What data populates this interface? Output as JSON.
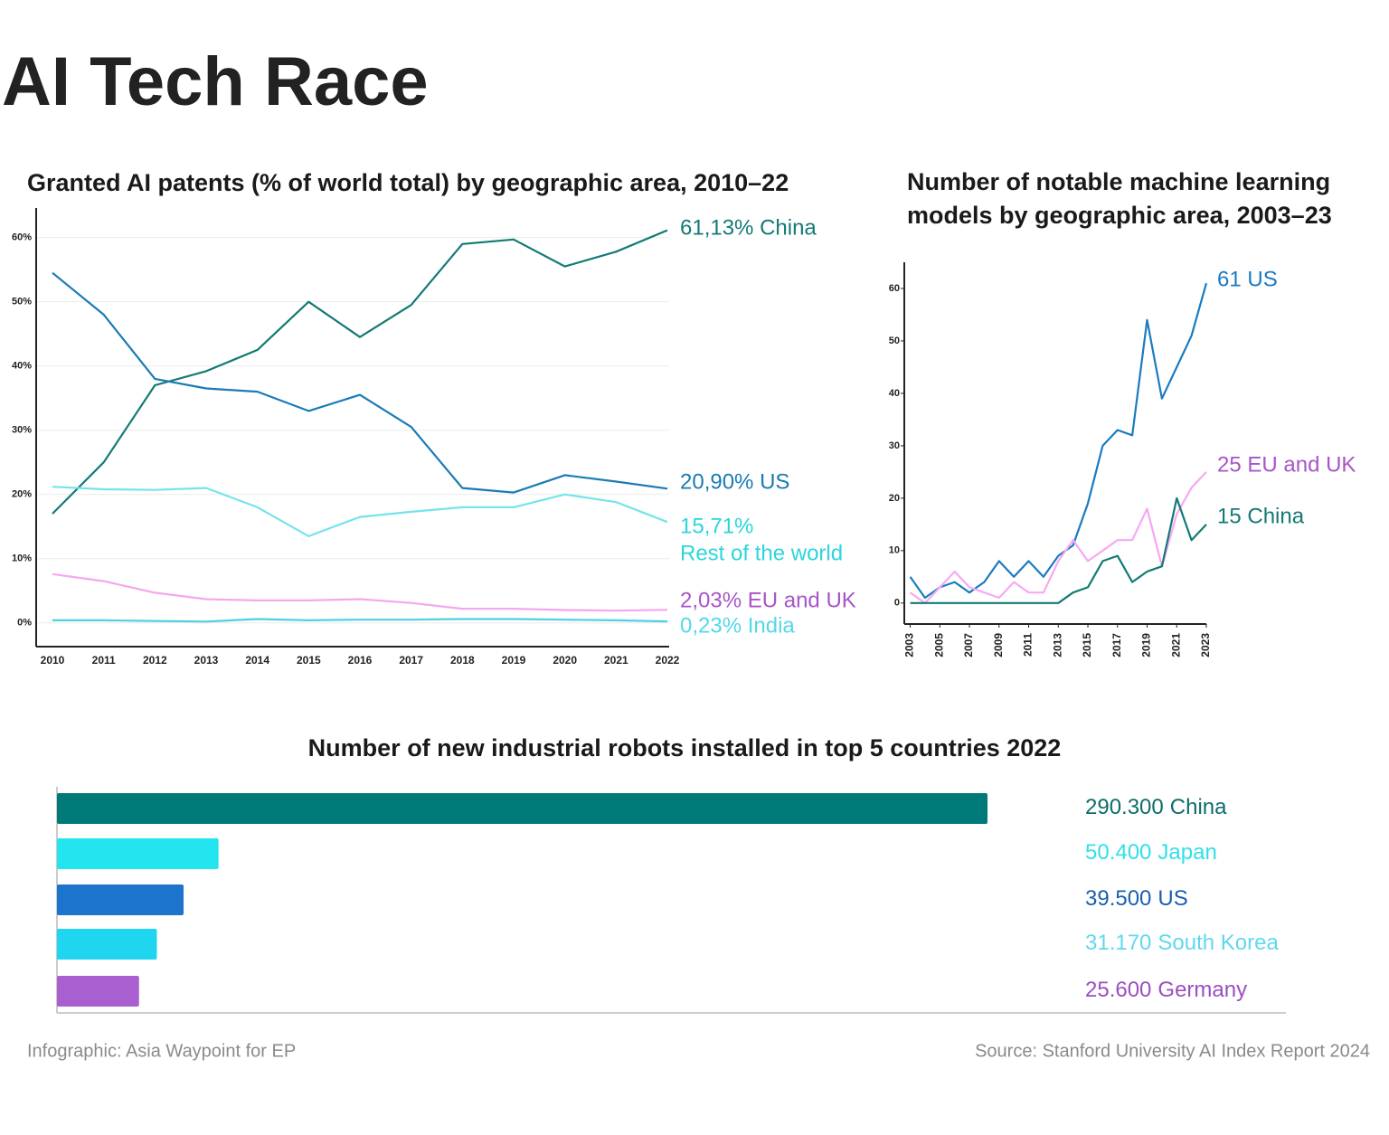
{
  "title": "AI Tech Race",
  "footer": {
    "credit": "Infographic: Asia Waypoint for EP",
    "source": "Source: Stanford University AI Index Report 2024"
  },
  "chart_data": [
    {
      "type": "line",
      "title": [
        "Granted AI patents (% of world total) by geographic area, 2010–22"
      ],
      "categories": [
        "2010",
        "2011",
        "2012",
        "2013",
        "2014",
        "2015",
        "2016",
        "2017",
        "2018",
        "2019",
        "2020",
        "2021",
        "2022"
      ],
      "ylim": [
        -3.7,
        64.6
      ],
      "yticks": [
        {
          "value": 0,
          "label": "0%"
        },
        {
          "value": 10,
          "label": "10%"
        },
        {
          "value": 20,
          "label": "20%"
        },
        {
          "value": 30,
          "label": "30%"
        },
        {
          "value": 40,
          "label": "40%"
        },
        {
          "value": 50,
          "label": "50%"
        },
        {
          "value": 60,
          "label": "60%"
        }
      ],
      "grid": true,
      "series": [
        {
          "name": "China",
          "label_lines": [
            "61,13% China"
          ],
          "color": "#137a74",
          "label_color": "#137a74",
          "values": [
            17,
            25,
            37,
            39.2,
            42.5,
            50,
            44.5,
            49.5,
            59,
            59.7,
            55.5,
            57.8,
            61.13
          ]
        },
        {
          "name": "US",
          "label_lines": [
            "20,90% US"
          ],
          "color": "#1a7bb5",
          "label_color": "#1a7bb5",
          "values": [
            54.5,
            48,
            38,
            36.5,
            36,
            33,
            35.5,
            30.5,
            21,
            20.3,
            23,
            22,
            20.9
          ]
        },
        {
          "name": "Rest of the world",
          "label_lines": [
            "15,71%",
            "Rest of  the world"
          ],
          "color": "#74e4ea",
          "label_color": "#2bd6dc",
          "values": [
            21.2,
            20.8,
            20.7,
            21,
            18,
            13.5,
            16.5,
            17.3,
            18,
            18,
            20,
            18.8,
            15.71
          ]
        },
        {
          "name": "EU and UK",
          "label_lines": [
            "2,03% EU and UK"
          ],
          "color": "#f5a6f0",
          "label_color": "#a855c8",
          "values": [
            7.6,
            6.5,
            4.7,
            3.7,
            3.5,
            3.5,
            3.7,
            3.1,
            2.2,
            2.2,
            2,
            1.9,
            2.03
          ]
        },
        {
          "name": "India",
          "label_lines": [
            "0,23% India"
          ],
          "color": "#4fcfe4",
          "label_color": "#52d8ea",
          "values": [
            0.4,
            0.4,
            0.3,
            0.2,
            0.6,
            0.4,
            0.5,
            0.5,
            0.6,
            0.6,
            0.5,
            0.4,
            0.23
          ]
        }
      ]
    },
    {
      "type": "line",
      "title": [
        "Number of notable machine learning",
        "models by geographic area, 2003–23"
      ],
      "x": [
        2003,
        2004,
        2005,
        2006,
        2007,
        2008,
        2009,
        2010,
        2011,
        2012,
        2013,
        2014,
        2015,
        2016,
        2017,
        2018,
        2019,
        2020,
        2021,
        2022,
        2023
      ],
      "xlim": [
        2002.6,
        2023
      ],
      "xticks": [
        2003,
        2005,
        2007,
        2009,
        2011,
        2013,
        2015,
        2017,
        2019,
        2021,
        2023
      ],
      "ylim": [
        -4,
        65
      ],
      "yticks": [
        0,
        10,
        20,
        30,
        40,
        50,
        60
      ],
      "grid": false,
      "series": [
        {
          "name": "US",
          "label_lines": [
            "61 US"
          ],
          "color": "#1a7bc0",
          "label_color": "#1a7bc0",
          "values": [
            5,
            1,
            3,
            4,
            2,
            4,
            8,
            5,
            8,
            5,
            9,
            11,
            19,
            30,
            33,
            32,
            54,
            39,
            45,
            51,
            61
          ]
        },
        {
          "name": "EU and UK",
          "label_lines": [
            "25 EU and UK"
          ],
          "color": "#f7a8f2",
          "label_color": "#a855c8",
          "values": [
            2,
            0,
            3,
            6,
            3,
            2,
            1,
            4,
            2,
            2,
            8,
            12,
            8,
            10,
            12,
            12,
            18,
            7,
            17,
            22,
            25
          ]
        },
        {
          "name": "China",
          "label_lines": [
            "15 China"
          ],
          "color": "#137a74",
          "label_color": "#137a74",
          "values": [
            0,
            0,
            0,
            0,
            0,
            0,
            0,
            0,
            0,
            0,
            0,
            2,
            3,
            8,
            9,
            4,
            6,
            7,
            20,
            12,
            15
          ]
        }
      ]
    },
    {
      "type": "bar",
      "orientation": "horizontal",
      "title": [
        "Number of new industrial robots installed  in top 5 countries 2022"
      ],
      "categories": [
        "China",
        "Japan",
        "US",
        "South Korea",
        "Germany"
      ],
      "values": [
        290300,
        50400,
        39500,
        31170,
        25600
      ],
      "value_labels": [
        "290.300",
        "50.400",
        "39.500",
        "31.170",
        "25.600"
      ],
      "colors": [
        "#007a78",
        "#22e5f0",
        "#1d74cc",
        "#1fd5f0",
        "#a95fcf"
      ],
      "label_colors": [
        "#0b6d6a",
        "#2fe0ea",
        "#1a5fae",
        "#5fd8ef",
        "#9a4fbf"
      ],
      "xlim": [
        0,
        383400
      ]
    }
  ]
}
